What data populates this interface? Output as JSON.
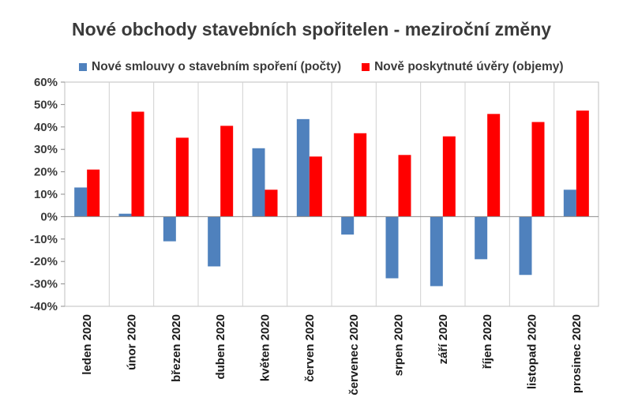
{
  "chart_data": {
    "type": "bar",
    "title": "Nové obchody stavebních spořitelen - meziroční změny",
    "categories": [
      "leden 2020",
      "únor 2020",
      "březen 2020",
      "duben 2020",
      "květen 2020",
      "červen 2020",
      "červenec 2020",
      "srpen 2020",
      "září 2020",
      "říjen 2020",
      "listopad 2020",
      "prosinec 2020"
    ],
    "series": [
      {
        "name": "Nové smlouvy o stavebním spoření (počty)",
        "color": "#4f81bd",
        "values": [
          0.13,
          0.013,
          -0.11,
          -0.222,
          0.305,
          0.435,
          -0.08,
          -0.275,
          -0.31,
          -0.19,
          -0.26,
          0.12
        ]
      },
      {
        "name": "Nově poskytnuté úvěry (objemy)",
        "color": "#ff0000",
        "values": [
          0.21,
          0.468,
          0.352,
          0.405,
          0.12,
          0.268,
          0.372,
          0.275,
          0.358,
          0.458,
          0.422,
          0.473
        ]
      }
    ],
    "yticks": [
      "60%",
      "50%",
      "40%",
      "30%",
      "20%",
      "10%",
      "0%",
      "-10%",
      "-20%",
      "-30%",
      "-40%"
    ],
    "ylim": [
      -0.4,
      0.6
    ],
    "grid": "vertical category separators",
    "legend_position": "top"
  }
}
